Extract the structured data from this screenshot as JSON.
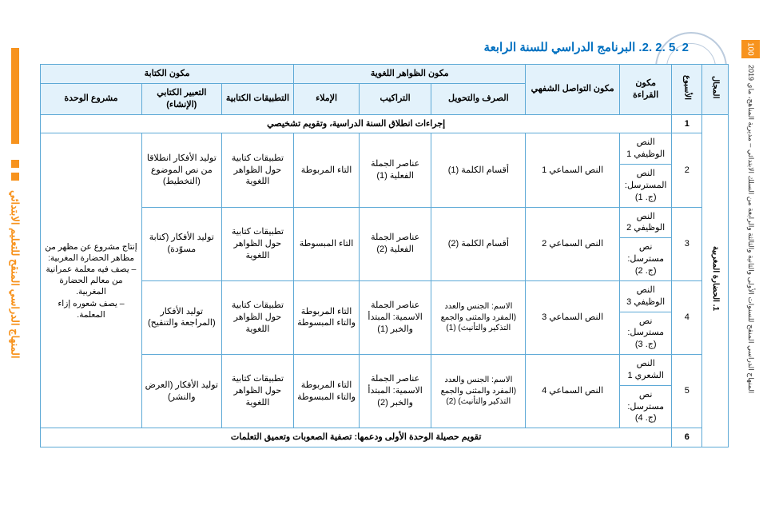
{
  "page_number": "100",
  "side_text_right": "المنهاج الدراسي المنقح للسنوات الأولى والثانية والثالثة والرابعة من السلك الابتدائي – مديرية المناهج، ماي 2019",
  "side_text_left": "المنهاج الدراسي المنقح للتعليم الابتدائي",
  "title": "2 .5 .2 .2. البرنامج الدراسي للسنة الرابعة",
  "headers": {
    "majal": "المجال",
    "week": "الأسبوع",
    "reading": "مكون القراءة",
    "oral": "مكون التواصل الشفهي",
    "lang_group": "مكون الظواهر اللغوية",
    "sarf": "الصرف والتحويل",
    "tarakib": "التراكيب",
    "imla": "الإملاء",
    "write_group": "مكون الكتابة",
    "tatbiq": "التطبيقات الكتابية",
    "tabir": "التعبير الكتابي (الإنشاء)",
    "project": "مشروع الوحدة"
  },
  "majal": "1. الحضارة المغربية",
  "row1": "إجراءات انطلاق السنة الدراسية، وتقويم تشخيصي",
  "rows": [
    {
      "week": "2",
      "reading_a": "النص الوظيفي 1",
      "reading_b": "النص المسترسل: (ج. 1)",
      "oral": "النص السماعي 1",
      "sarf": "أقسام الكلمة (1)",
      "tarakib": "عناصر الجملة الفعلية (1)",
      "imla": "التاء المربوطة",
      "tatbiq": "تطبيقات كتابية حول الظواهر اللغوية",
      "tabir": "توليد الأفكار انطلاقا من نص الموضوع (التخطيط)"
    },
    {
      "week": "3",
      "reading_a": "النص الوظيفي 2",
      "reading_b": "نص مسترسل: (ج. 2)",
      "oral": "النص السماعي 2",
      "sarf": "أقسام الكلمة (2)",
      "tarakib": "عناصر الجملة الفعلية (2)",
      "imla": "التاء المبسوطة",
      "tatbiq": "تطبيقات كتابية حول الظواهر اللغوية",
      "tabir": "توليد الأفكار (كتابة مسوّدة)"
    },
    {
      "week": "4",
      "reading_a": "النص الوظيفي 3",
      "reading_b": "نص مسترسل: (ج. 3)",
      "oral": "النص السماعي 3",
      "sarf": "الاسم: الجنس والعدد (المفرد والمثنى والجمع التذكير والتأنيث) (1)",
      "tarakib": "عناصر الجملة الاسمية: المبتدأ والخبر (1)",
      "imla": "التاء المربوطة والتاء المبسوطة",
      "tatbiq": "تطبيقات كتابية حول الظواهر اللغوية",
      "tabir": "توليد الأفكار (المراجعة والتنقيح)"
    },
    {
      "week": "5",
      "reading_a": "النص الشعري 1",
      "reading_b": "نص مسترسل: (ج. 4)",
      "oral": "النص السماعي 4",
      "sarf": "الاسم: الجنس والعدد (المفرد والمثنى والجمع التذكير والتأنيث) (2)",
      "tarakib": "عناصر الجملة الاسمية: المبتدأ والخبر (2)",
      "imla": "التاء المربوطة والتاء المبسوطة",
      "tatbiq": "تطبيقات كتابية حول الظواهر اللغوية",
      "tabir": "توليد الأفكار (العرض والنشر)"
    }
  ],
  "project_text": "إنتاج مشروع عن مظهر من مظاهر الحضارة المغربية:\n– يصف فيه معلمة عمرانية من معالم الحضارة المغربية.\n– يصف شعوره إزاء المعلمة.",
  "row6": "تقويم حصيلة الوحدة الأولى ودعمها: تصفية الصعوبات وتعميق التعلمات"
}
